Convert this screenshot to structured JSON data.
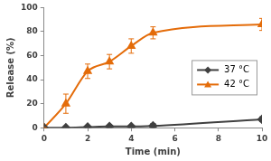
{
  "chart_data": {
    "type": "line",
    "x_label": "Time (min)",
    "y_label": "Release (%)",
    "x": [
      0,
      1,
      2,
      3,
      4,
      5,
      10
    ],
    "series": [
      {
        "name": "37 °C",
        "color": "#404040",
        "marker": "diamond",
        "values": [
          0,
          0,
          0.5,
          1,
          1,
          1.5,
          7
        ],
        "errors": [
          0,
          0.5,
          0.5,
          1,
          1,
          2,
          2
        ]
      },
      {
        "name": "42 °C",
        "color": "#e46c0a",
        "marker": "triangle",
        "values": [
          0,
          20,
          47,
          55,
          68,
          79,
          86
        ],
        "errors": [
          0,
          8,
          6,
          6,
          6,
          5,
          5
        ]
      }
    ],
    "xlim": [
      0,
      10
    ],
    "xticks": [
      0,
      2,
      4,
      6,
      8,
      10
    ],
    "ylim": [
      0,
      100
    ],
    "yticks": [
      0,
      20,
      40,
      60,
      80,
      100
    ],
    "grid": false,
    "legend": "right"
  }
}
